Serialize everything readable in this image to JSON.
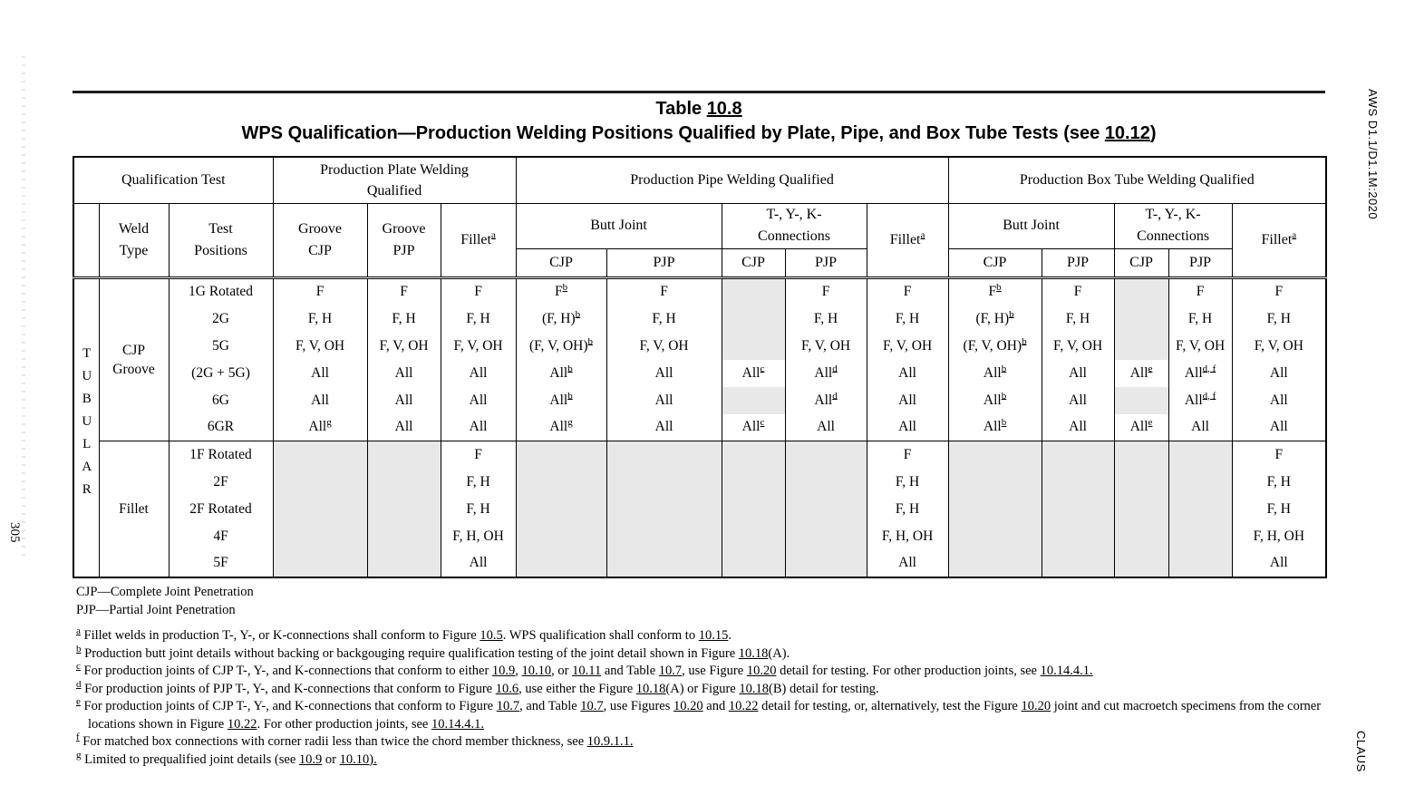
{
  "page": {
    "left_margin_page_number": "305",
    "right_margin_top": "AWS D1.1/D1.1M:2020",
    "right_margin_bottom": "CLAUS"
  },
  "title": {
    "line1_prefix": "Table ",
    "line1_ref": "10.8",
    "line2_main": "WPS Qualification—Production Welding Positions Qualified by Plate, Pipe, and Box Tube Tests (see ",
    "line2_ref": "10.12",
    "line2_suffix": ")"
  },
  "header": {
    "qualification_test": "Qualification Test",
    "plate_group": "Production Plate Welding\nQualified",
    "pipe_group": "Production Pipe Welding Qualified",
    "box_group": "Production Box Tube Welding Qualified",
    "weld_type": "Weld\nType",
    "test_positions": "Test\nPositions",
    "groove_cjp": "Groove\nCJP",
    "groove_pjp": "Groove\nPJP",
    "fillet": "Fillet",
    "fillet_sup": "a",
    "butt_joint": "Butt Joint",
    "tyk_connections": "T-, Y-, K-\nConnections",
    "cjp": "CJP",
    "pjp": "PJP"
  },
  "table": {
    "tubular_label": "TUBULAR",
    "groups": [
      {
        "label": "CJP\nGroove",
        "start": 0,
        "rows": 6
      },
      {
        "label": "Fillet",
        "start": 6,
        "rows": 5
      }
    ],
    "fillet_section_start": 6,
    "shading_color": "#e8e8e8",
    "rows": [
      {
        "position": "1G Rotated",
        "cells": [
          "F",
          "F",
          "F",
          "F^{b}",
          "F",
          "",
          "F",
          "F",
          "F^{b}",
          "F",
          "",
          "F",
          "F"
        ]
      },
      {
        "position": "2G",
        "cells": [
          "F, H",
          "F, H",
          "F, H",
          "(F, H)^{b}",
          "F, H",
          "",
          "F, H",
          "F, H",
          "(F, H)^{b}",
          "F, H",
          "",
          "F, H",
          "F, H"
        ]
      },
      {
        "position": "5G",
        "cells": [
          "F, V, OH",
          "F, V, OH",
          "F, V, OH",
          "(F, V, OH)^{b}",
          "F, V, OH",
          "",
          "F, V, OH",
          "F, V, OH",
          "(F, V, OH)^{b}",
          "F, V, OH",
          "",
          "F, V, OH",
          "F, V, OH"
        ]
      },
      {
        "position": "(2G + 5G)",
        "cells": [
          "All",
          "All",
          "All",
          "All^{b}",
          "All",
          "All^{c}",
          "All^{d}",
          "All",
          "All^{b}",
          "All",
          "All^{e}",
          "All^{d, f}",
          "All"
        ]
      },
      {
        "position": "6G",
        "cells": [
          "All",
          "All",
          "All",
          "All^{b}",
          "All",
          "",
          "All^{d}",
          "All",
          "All^{b}",
          "All",
          "",
          "All^{d, f}",
          "All"
        ]
      },
      {
        "position": "6GR",
        "cells": [
          "All^{g}",
          "All",
          "All",
          "All^{g}",
          "All",
          "All^{c}",
          "All",
          "All",
          "All^{b}",
          "All",
          "All^{e}",
          "All",
          "All"
        ]
      },
      {
        "position": "1F Rotated",
        "cells": [
          "",
          "",
          "F",
          "",
          "",
          "",
          "",
          "F",
          "",
          "",
          "",
          "",
          "F"
        ]
      },
      {
        "position": "2F",
        "cells": [
          "",
          "",
          "F, H",
          "",
          "",
          "",
          "",
          "F, H",
          "",
          "",
          "",
          "",
          "F, H"
        ]
      },
      {
        "position": "2F Rotated",
        "cells": [
          "",
          "",
          "F, H",
          "",
          "",
          "",
          "",
          "F, H",
          "",
          "",
          "",
          "",
          "F, H"
        ]
      },
      {
        "position": "4F",
        "cells": [
          "",
          "",
          "F, H, OH",
          "",
          "",
          "",
          "",
          "F, H, OH",
          "",
          "",
          "",
          "",
          "F, H, OH"
        ]
      },
      {
        "position": "5F",
        "cells": [
          "",
          "",
          "All",
          "",
          "",
          "",
          "",
          "All",
          "",
          "",
          "",
          "",
          "All"
        ]
      }
    ]
  },
  "footnotes": {
    "legend": [
      "CJP—Complete Joint Penetration",
      "PJP—Partial Joint Penetration"
    ],
    "items": [
      {
        "sup": "a",
        "text": "Fillet welds in production T-, Y-, or K-connections shall conform to Figure __10.5__. WPS qualification shall conform to __10.15__."
      },
      {
        "sup": "b",
        "text": "Production butt joint details without backing or backgouging require qualification testing of the joint detail shown in Figure __10.18__(A)."
      },
      {
        "sup": "c",
        "text": "For production joints of CJP T-, Y-, and K-connections that conform to either __10.9__, __10.10__, or __10.11__ and Table __10.7__, use Figure __10.20__ detail for testing. For other production joints, see __10.14.4.1.__"
      },
      {
        "sup": "d",
        "text": "For production joints of PJP T-, Y-, and K-connections that conform to Figure __10.6__, use either the Figure __10.18__(A) or Figure __10.18__(B) detail for testing."
      },
      {
        "sup": "e",
        "text": "For production joints of CJP T-, Y-, and K-connections that conform to Figure __10.7__, and Table __10.7__, use Figures __10.20__ and __10.22__ detail for testing, or, alternatively, test the Figure __10.20__ joint and cut macroetch specimens from the corner locations shown in Figure __10.22__. For other production joints, see __10.14.4.1.__"
      },
      {
        "sup": "f",
        "text": "For matched box connections with corner radii less than twice the chord member thickness, see __10.9.1.1.__"
      },
      {
        "sup": "g",
        "text": "Limited to prequalified joint details (see __10.9__ or __10.10).__"
      }
    ]
  }
}
